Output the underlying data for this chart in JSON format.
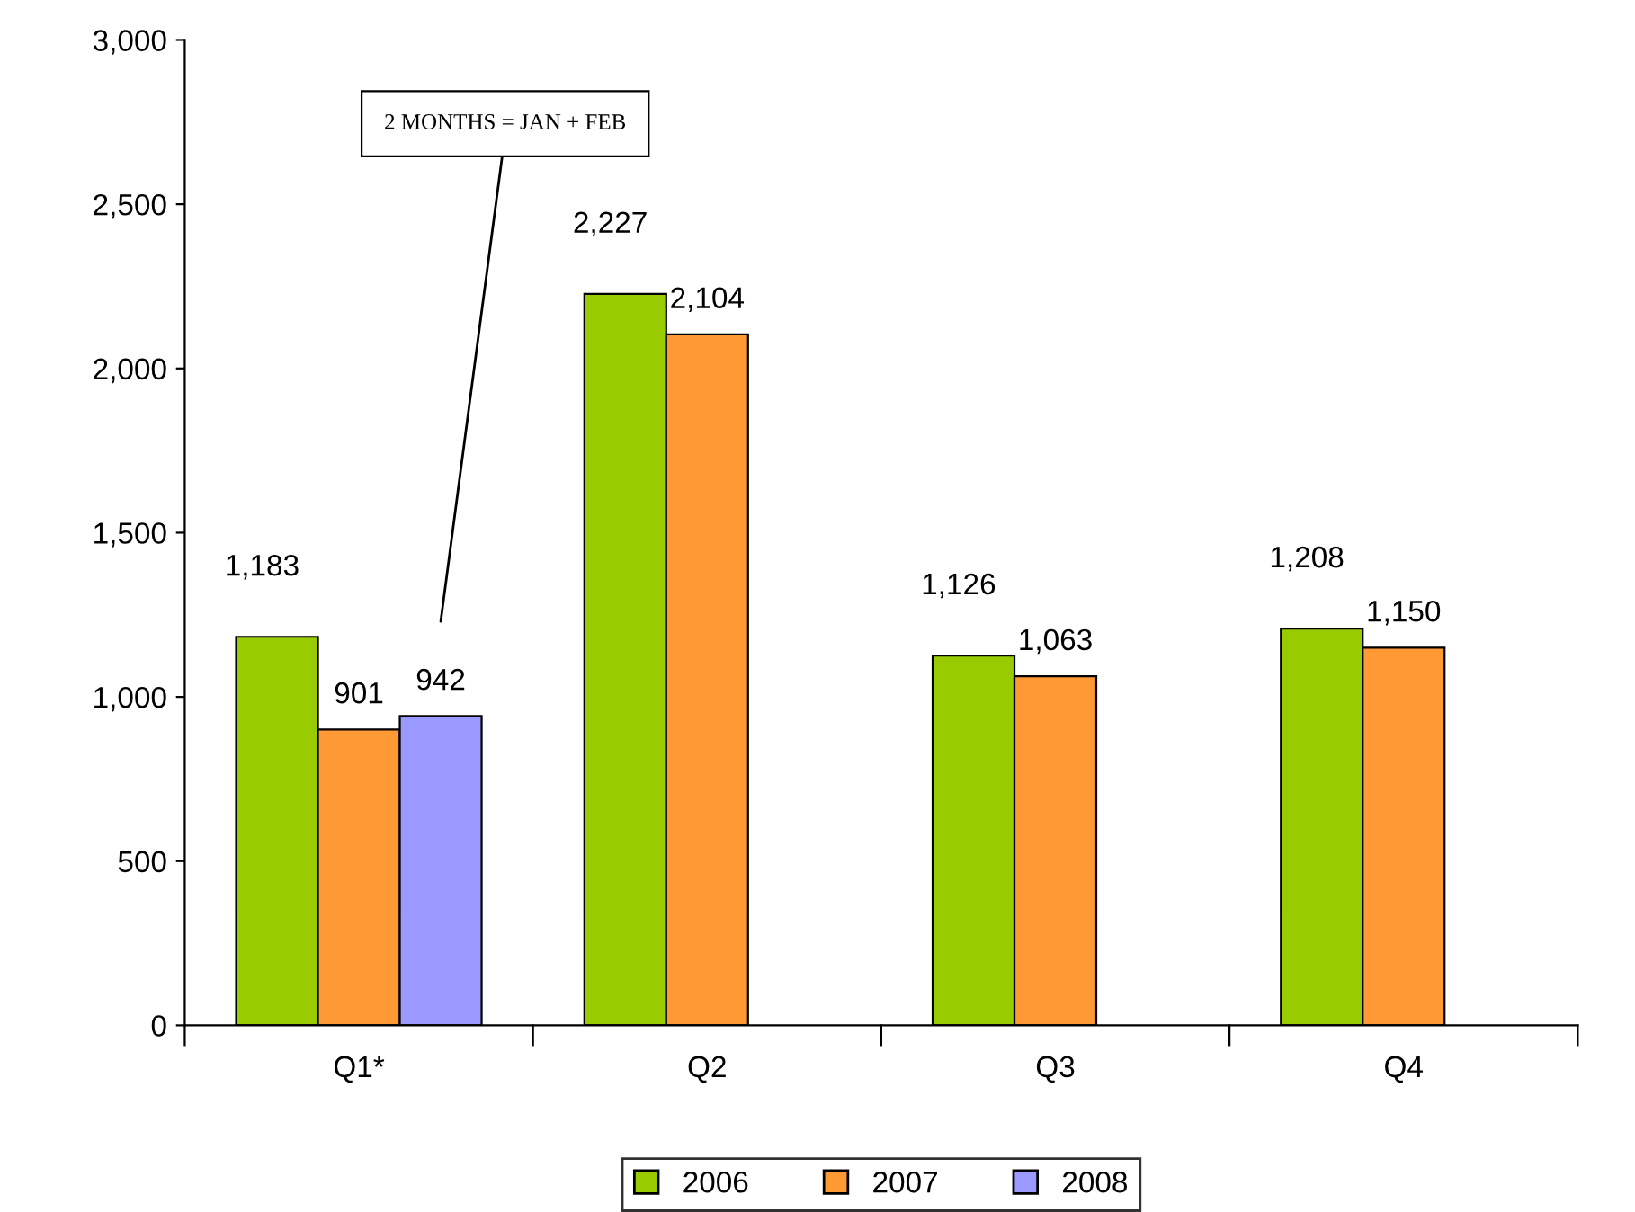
{
  "chart_data": {
    "type": "bar",
    "categories": [
      "Q1*",
      "Q2",
      "Q3",
      "Q4"
    ],
    "series": [
      {
        "name": "2006",
        "color": "#99cc00",
        "values": [
          1183,
          2227,
          1126,
          1208
        ],
        "value_labels": [
          "1,183",
          "2,227",
          "1,126",
          "1,208"
        ]
      },
      {
        "name": "2007",
        "color": "#ff9933",
        "values": [
          901,
          2104,
          1063,
          1150
        ],
        "value_labels": [
          "901",
          "2,104",
          "1,063",
          "1,150"
        ]
      },
      {
        "name": "2008",
        "color": "#9999ff",
        "values": [
          942,
          null,
          null,
          null
        ],
        "value_labels": [
          "942",
          null,
          null,
          null
        ]
      }
    ],
    "ylim": [
      0,
      3000
    ],
    "yticks": [
      0,
      {
        "value": 500,
        "label": "500"
      },
      {
        "value": 1000,
        "label": "1,000"
      },
      {
        "value": 1500,
        "label": "1,500"
      },
      {
        "value": 2000,
        "label": "2,000"
      },
      {
        "value": 2500,
        "label": "2,500"
      },
      {
        "value": 3000,
        "label": "3,000"
      }
    ],
    "legend": "bottom",
    "grid": false,
    "annotations": [
      "2 MONTHS = JAN + FEB"
    ]
  }
}
